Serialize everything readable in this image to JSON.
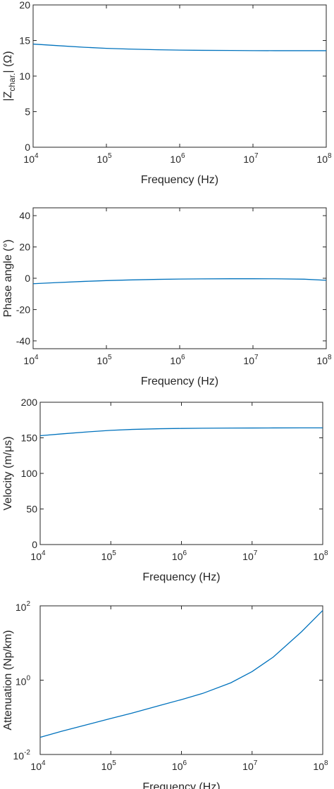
{
  "colors": {
    "series": "#0072BD",
    "axis": "#262626"
  },
  "chart_data": [
    {
      "type": "line",
      "xlabel": "Frequency (Hz)",
      "ylabel_main": "|Z",
      "ylabel_sub": "char.",
      "ylabel_tail": "| (Ω)",
      "xscale": "log",
      "yscale": "linear",
      "xlim": [
        10000,
        100000000
      ],
      "ylim": [
        0,
        20
      ],
      "x_ticks": [
        {
          "base": "10",
          "exp": "4"
        },
        {
          "base": "10",
          "exp": "5"
        },
        {
          "base": "10",
          "exp": "6"
        },
        {
          "base": "10",
          "exp": "7"
        },
        {
          "base": "10",
          "exp": "8"
        }
      ],
      "y_ticks": [
        {
          "value": 0,
          "label": "0"
        },
        {
          "value": 5,
          "label": "5"
        },
        {
          "value": 10,
          "label": "10"
        },
        {
          "value": 15,
          "label": "15"
        },
        {
          "value": 20,
          "label": "20"
        }
      ],
      "x": [
        10000,
        20000,
        50000,
        100000,
        200000,
        500000,
        1000000,
        2000000,
        5000000,
        10000000,
        20000000,
        50000000,
        100000000
      ],
      "y": [
        14.5,
        14.3,
        14.05,
        13.9,
        13.8,
        13.7,
        13.65,
        13.62,
        13.6,
        13.58,
        13.57,
        13.57,
        13.57
      ]
    },
    {
      "type": "line",
      "xlabel": "Frequency (Hz)",
      "ylabel": "Phase angle (°)",
      "xscale": "log",
      "yscale": "linear",
      "xlim": [
        10000,
        100000000
      ],
      "ylim": [
        -45,
        45
      ],
      "x_ticks": [
        {
          "base": "10",
          "exp": "4"
        },
        {
          "base": "10",
          "exp": "5"
        },
        {
          "base": "10",
          "exp": "6"
        },
        {
          "base": "10",
          "exp": "7"
        },
        {
          "base": "10",
          "exp": "8"
        }
      ],
      "y_ticks": [
        {
          "value": -40,
          "label": "-40"
        },
        {
          "value": -20,
          "label": "-20"
        },
        {
          "value": 0,
          "label": "0"
        },
        {
          "value": 20,
          "label": "20"
        },
        {
          "value": 40,
          "label": "40"
        }
      ],
      "x": [
        10000,
        20000,
        50000,
        100000,
        200000,
        500000,
        1000000,
        2000000,
        5000000,
        10000000,
        20000000,
        50000000,
        100000000
      ],
      "y": [
        -3.5,
        -2.8,
        -2.0,
        -1.5,
        -1.1,
        -0.7,
        -0.5,
        -0.4,
        -0.3,
        -0.3,
        -0.35,
        -0.6,
        -1.3
      ]
    },
    {
      "type": "line",
      "xlabel": "Frequency (Hz)",
      "ylabel": "Velocity (m/μs)",
      "xscale": "log",
      "yscale": "linear",
      "xlim": [
        10000,
        100000000
      ],
      "ylim": [
        0,
        200
      ],
      "x_ticks": [
        {
          "base": "10",
          "exp": "4"
        },
        {
          "base": "10",
          "exp": "5"
        },
        {
          "base": "10",
          "exp": "6"
        },
        {
          "base": "10",
          "exp": "7"
        },
        {
          "base": "10",
          "exp": "8"
        }
      ],
      "y_ticks": [
        {
          "value": 0,
          "label": "0"
        },
        {
          "value": 50,
          "label": "50"
        },
        {
          "value": 100,
          "label": "100"
        },
        {
          "value": 150,
          "label": "150"
        },
        {
          "value": 200,
          "label": "200"
        }
      ],
      "x": [
        10000,
        20000,
        50000,
        100000,
        200000,
        500000,
        1000000,
        2000000,
        5000000,
        10000000,
        20000000,
        50000000,
        100000000
      ],
      "y": [
        153,
        155.5,
        158.5,
        160.5,
        161.8,
        162.8,
        163.2,
        163.5,
        163.7,
        163.8,
        163.9,
        164,
        164
      ]
    },
    {
      "type": "line",
      "xlabel": "Frequency (Hz)",
      "ylabel": "Attenuation (Np/km)",
      "xscale": "log",
      "yscale": "log",
      "xlim": [
        10000,
        100000000
      ],
      "ylim": [
        0.01,
        100
      ],
      "x_ticks": [
        {
          "base": "10",
          "exp": "4"
        },
        {
          "base": "10",
          "exp": "5"
        },
        {
          "base": "10",
          "exp": "6"
        },
        {
          "base": "10",
          "exp": "7"
        },
        {
          "base": "10",
          "exp": "8"
        }
      ],
      "y_ticks": [
        {
          "value": 0.01,
          "base": "10",
          "exp": "-2"
        },
        {
          "value": 1,
          "base": "10",
          "exp": "0"
        },
        {
          "value": 100,
          "base": "10",
          "exp": "2"
        }
      ],
      "x": [
        10000,
        20000,
        50000,
        100000,
        200000,
        500000,
        1000000,
        2000000,
        5000000,
        10000000,
        20000000,
        50000000,
        100000000
      ],
      "y": [
        0.029,
        0.042,
        0.066,
        0.093,
        0.13,
        0.21,
        0.3,
        0.44,
        0.85,
        1.7,
        4.2,
        20,
        75
      ]
    }
  ]
}
